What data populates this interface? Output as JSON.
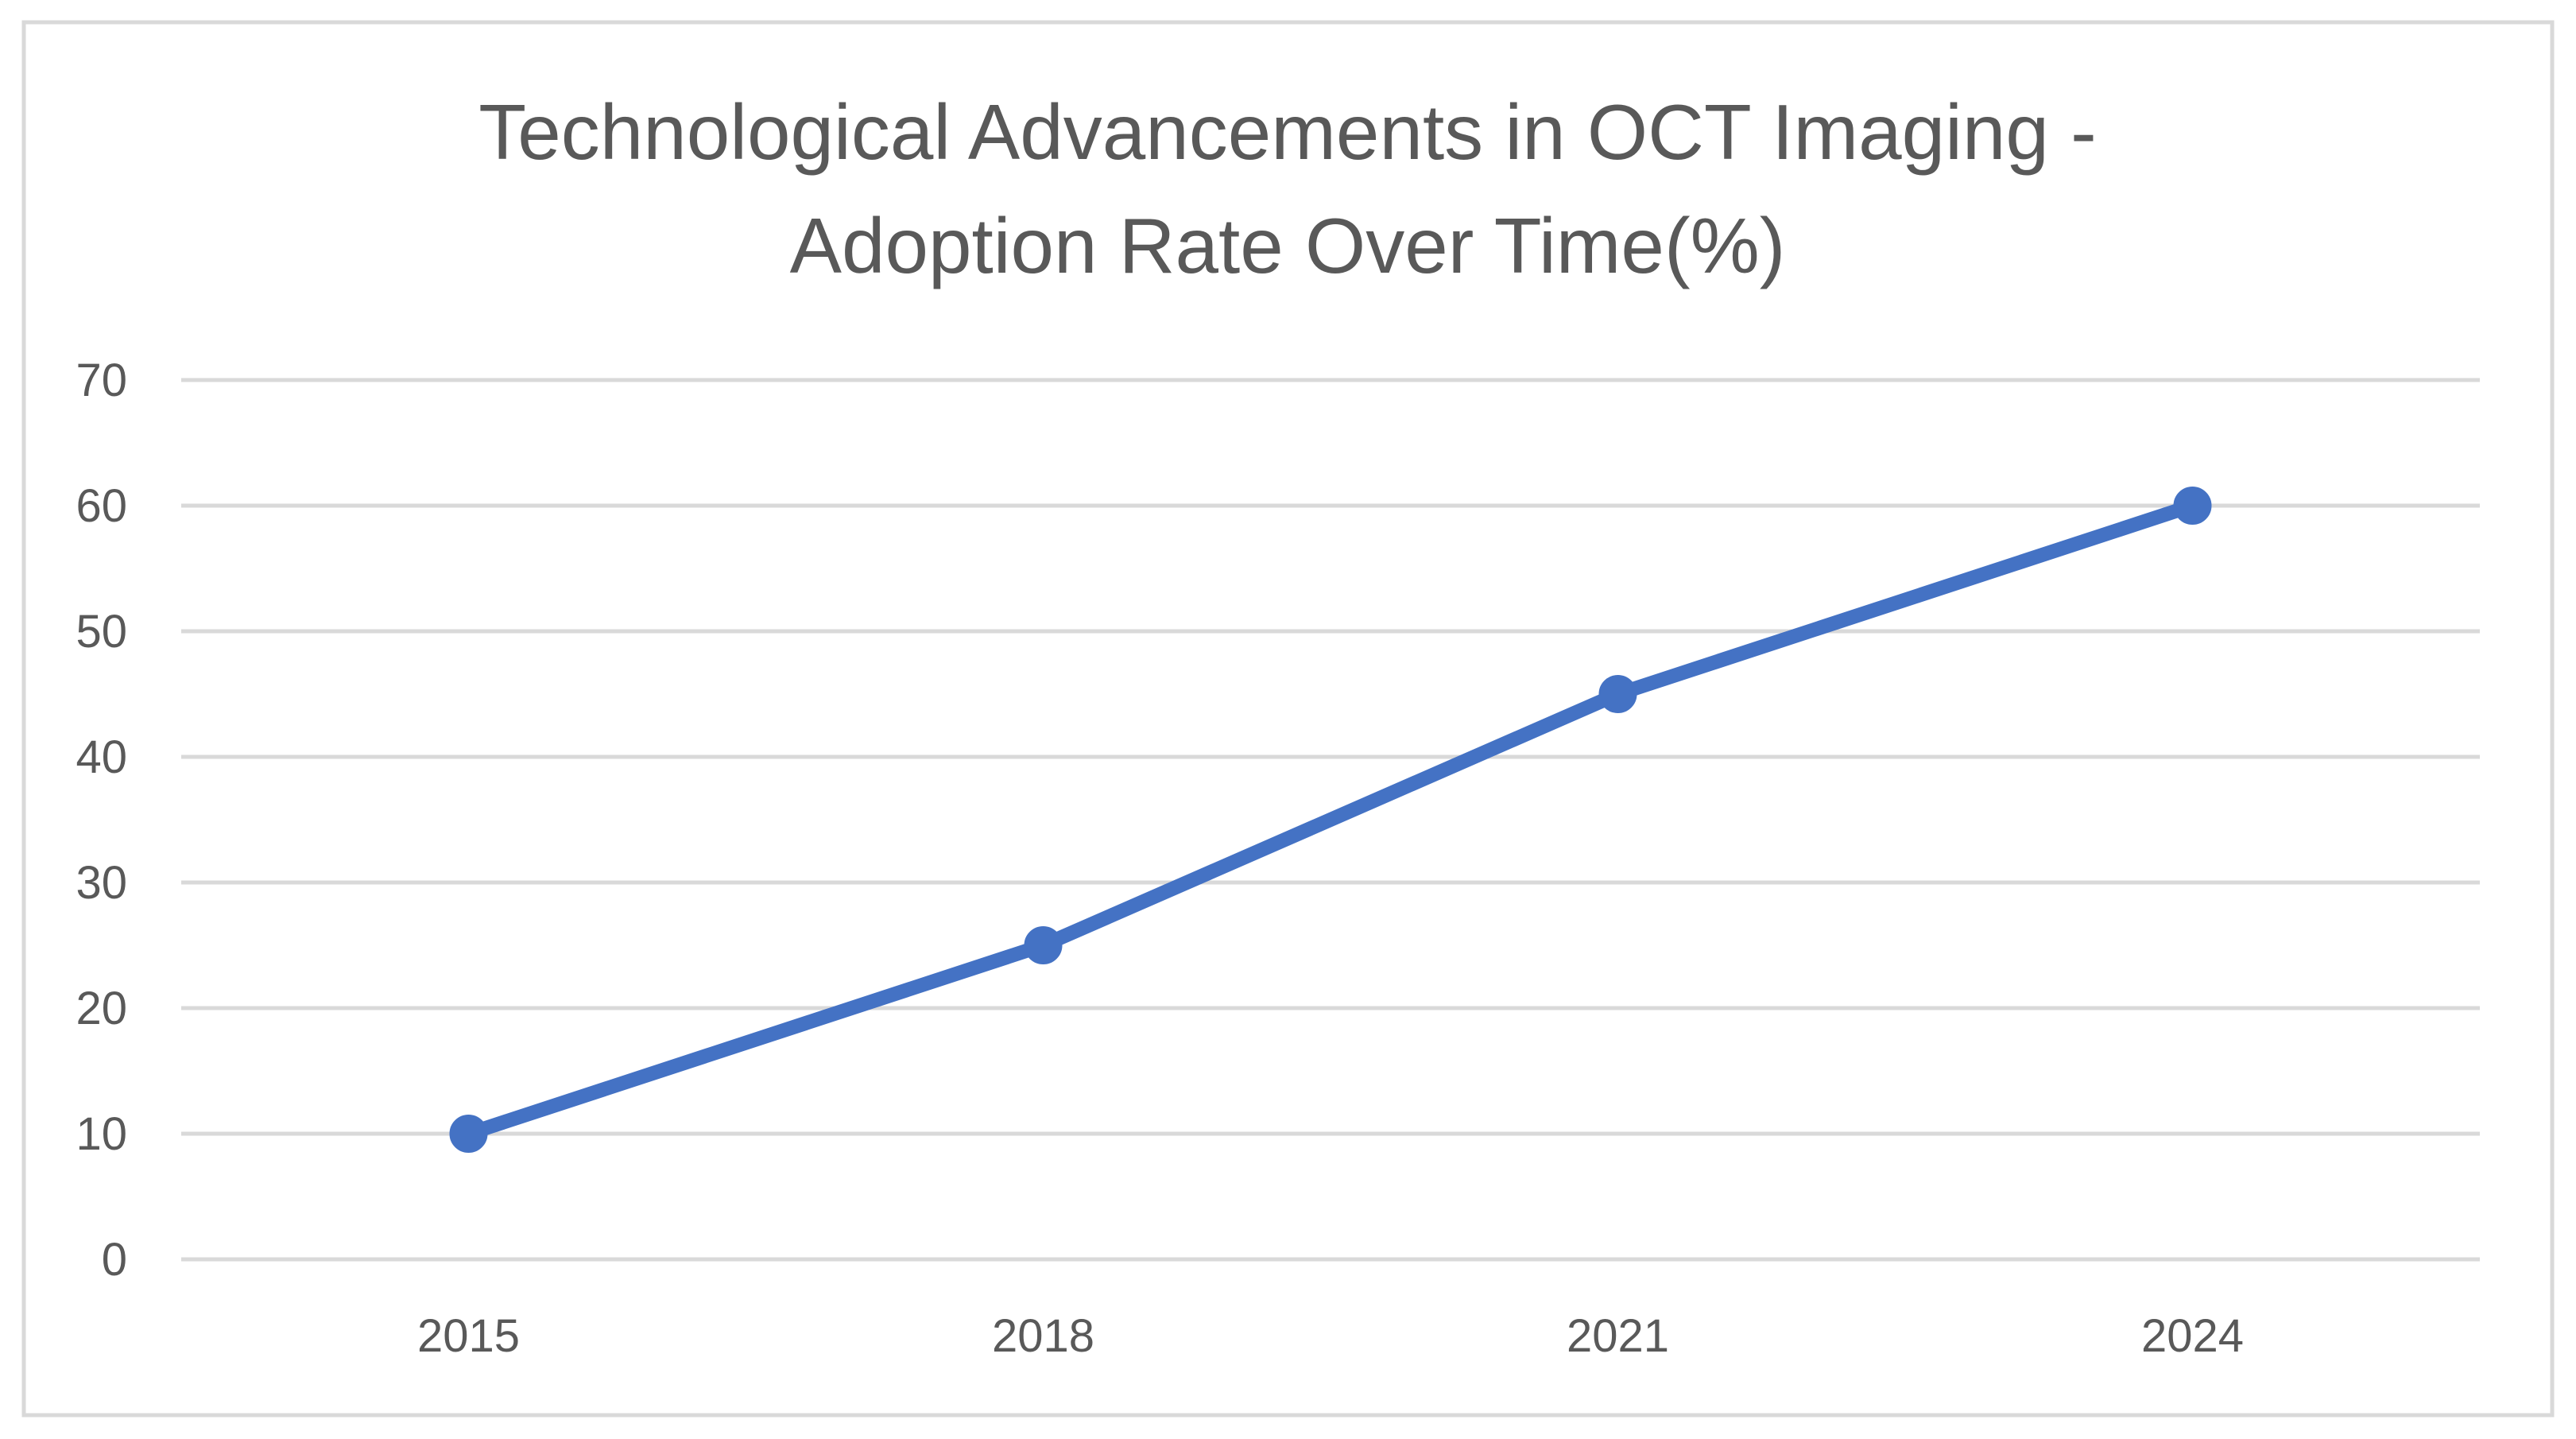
{
  "chart_data": {
    "type": "line",
    "title_lines": [
      "Technological Advancements in OCT Imaging -",
      "Adoption Rate Over Time(%)"
    ],
    "categories": [
      "2015",
      "2018",
      "2021",
      "2024"
    ],
    "series": [
      {
        "name": "Adoption Rate",
        "values": [
          10,
          25,
          45,
          60
        ],
        "color": "#4472C4"
      }
    ],
    "yticks": [
      "0",
      "10",
      "20",
      "30",
      "40",
      "50",
      "60",
      "70"
    ],
    "ylim": [
      0,
      70
    ],
    "xlabel": "",
    "ylabel": "",
    "grid": true,
    "legend": "none",
    "colors": {
      "gridline": "#D9D9D9",
      "border": "#D9D9D9",
      "text": "#595959"
    }
  }
}
